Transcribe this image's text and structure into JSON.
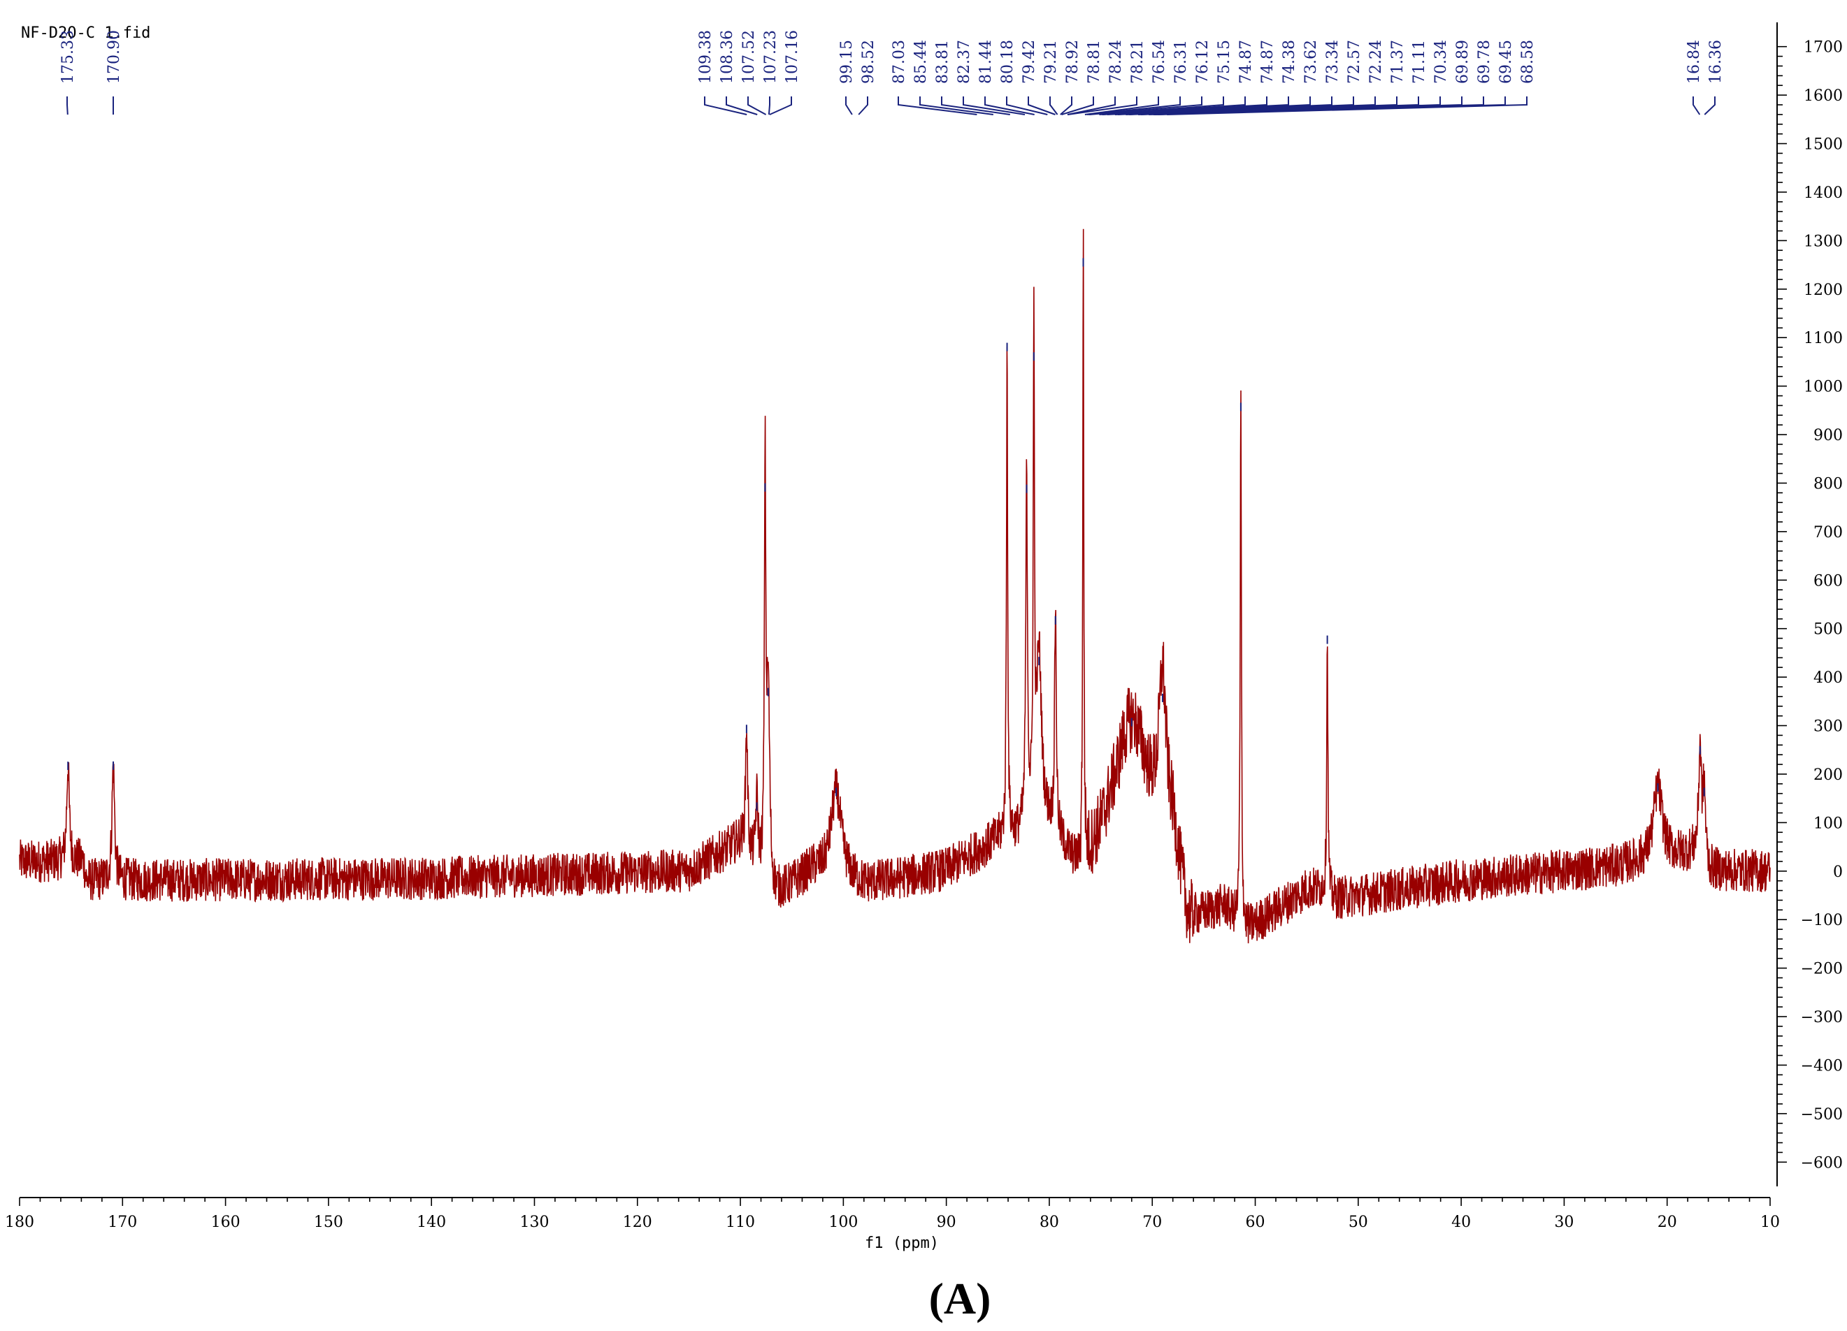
{
  "file_label": "NF-D2O-C 1.fid",
  "caption": "(A)",
  "chart_data": {
    "type": "line",
    "title": "",
    "xlabel": "f1 (ppm)",
    "ylabel": "",
    "xlim": [
      180,
      10
    ],
    "ylim": [
      -650,
      1750
    ],
    "x_reversed": true,
    "x_ticks": [
      180,
      170,
      160,
      150,
      140,
      130,
      120,
      110,
      100,
      90,
      80,
      70,
      60,
      50,
      40,
      30,
      20,
      10
    ],
    "x_tick_labels": [
      "180",
      "170",
      "160",
      "150",
      "140",
      "130",
      "120",
      "110",
      "100",
      "90",
      "80",
      "70",
      "60",
      "50",
      "40",
      "30",
      "20",
      "10"
    ],
    "y_ticks": [
      1700,
      1600,
      1500,
      1400,
      1300,
      1200,
      1100,
      1000,
      900,
      800,
      700,
      600,
      500,
      400,
      300,
      200,
      100,
      0,
      -100,
      -200,
      -300,
      -400,
      -500,
      -600
    ],
    "y_tick_labels": [
      "1700",
      "1600",
      "1500",
      "1400",
      "1300",
      "1200",
      "1100",
      "1000",
      "900",
      "800",
      "700",
      "600",
      "500",
      "400",
      "300",
      "200",
      "100",
      "0",
      "−100",
      "−200",
      "−300",
      "−400",
      "−500",
      "−600"
    ],
    "y_axis_position": "right",
    "grid": false,
    "series_color": "#990000",
    "peak_marker_color": "#1a237e",
    "peak_labels": [
      "175.33",
      "170.90",
      "109.38",
      "108.36",
      "107.52",
      "107.23",
      "107.16",
      "99.15",
      "98.52",
      "87.03",
      "85.44",
      "83.81",
      "82.37",
      "81.44",
      "80.18",
      "79.42",
      "79.21",
      "78.92",
      "78.81",
      "78.24",
      "78.21",
      "76.54",
      "76.31",
      "76.12",
      "75.15",
      "74.87",
      "74.87",
      "74.38",
      "73.62",
      "73.34",
      "72.57",
      "72.24",
      "71.37",
      "71.11",
      "70.34",
      "69.89",
      "69.78",
      "69.45",
      "68.58",
      "16.84",
      "16.36"
    ],
    "peak_shifts": [
      175.33,
      170.9,
      109.38,
      108.36,
      107.52,
      107.23,
      107.16,
      99.15,
      98.52,
      87.03,
      85.44,
      83.81,
      82.37,
      81.44,
      80.18,
      79.42,
      79.21,
      78.92,
      78.81,
      78.24,
      78.21,
      76.54,
      76.31,
      76.12,
      75.15,
      74.87,
      74.87,
      74.38,
      73.62,
      73.34,
      72.57,
      72.24,
      71.37,
      71.11,
      70.34,
      69.89,
      69.78,
      69.45,
      68.58,
      16.84,
      16.36
    ],
    "peaks": [
      {
        "x": 175.3,
        "y": 200,
        "w": 0.15
      },
      {
        "x": 170.9,
        "y": 240,
        "w": 0.15
      },
      {
        "x": 109.4,
        "y": 260,
        "w": 0.12
      },
      {
        "x": 108.4,
        "y": 140,
        "w": 0.15
      },
      {
        "x": 107.6,
        "y": 830,
        "w": 0.08
      },
      {
        "x": 107.3,
        "y": 420,
        "w": 0.18
      },
      {
        "x": 100.7,
        "y": 180,
        "w": 0.6
      },
      {
        "x": 84.1,
        "y": 1020,
        "w": 0.07
      },
      {
        "x": 82.2,
        "y": 720,
        "w": 0.1
      },
      {
        "x": 81.5,
        "y": 990,
        "w": 0.07
      },
      {
        "x": 81.0,
        "y": 360,
        "w": 0.3
      },
      {
        "x": 79.4,
        "y": 460,
        "w": 0.1
      },
      {
        "x": 76.7,
        "y": 1270,
        "w": 0.06
      },
      {
        "x": 72.0,
        "y": 250,
        "w": 1.8
      },
      {
        "x": 69.0,
        "y": 300,
        "w": 0.4
      },
      {
        "x": 61.4,
        "y": 1080,
        "w": 0.07
      },
      {
        "x": 53.0,
        "y": 530,
        "w": 0.07
      },
      {
        "x": 20.9,
        "y": 150,
        "w": 0.5
      },
      {
        "x": 16.8,
        "y": 220,
        "w": 0.15
      },
      {
        "x": 16.4,
        "y": 150,
        "w": 0.15
      }
    ],
    "baseline_segments": [
      {
        "x": 180,
        "y": 20
      },
      {
        "x": 173.8,
        "y": 20
      },
      {
        "x": 173.5,
        "y": -20
      },
      {
        "x": 140,
        "y": -15
      },
      {
        "x": 115,
        "y": 0
      },
      {
        "x": 110,
        "y": 60
      },
      {
        "x": 107,
        "y": -60
      },
      {
        "x": 103,
        "y": 0
      },
      {
        "x": 98,
        "y": -30
      },
      {
        "x": 90,
        "y": 0
      },
      {
        "x": 85,
        "y": 60
      },
      {
        "x": 80,
        "y": 80
      },
      {
        "x": 77,
        "y": -20
      },
      {
        "x": 74,
        "y": 60
      },
      {
        "x": 68,
        "y": 60
      },
      {
        "x": 66.5,
        "y": -120
      },
      {
        "x": 63,
        "y": -80
      },
      {
        "x": 61,
        "y": -130
      },
      {
        "x": 55,
        "y": -40
      },
      {
        "x": 53.5,
        "y": -40
      },
      {
        "x": 52.5,
        "y": -60
      },
      {
        "x": 40,
        "y": -20
      },
      {
        "x": 25,
        "y": 10
      },
      {
        "x": 17,
        "y": 40
      },
      {
        "x": 16,
        "y": 0
      },
      {
        "x": 10,
        "y": 0
      }
    ],
    "noise_amplitude": 45
  }
}
